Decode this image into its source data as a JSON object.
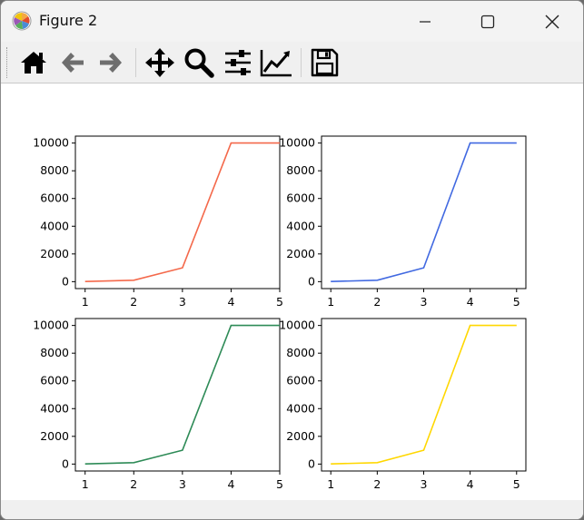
{
  "window": {
    "title": "Figure 2",
    "app_icon": "matplotlib-logo-icon",
    "controls": [
      "minimize-icon",
      "maximize-icon",
      "close-icon"
    ]
  },
  "toolbar": {
    "buttons": [
      {
        "name": "home-button",
        "icon": "home-icon"
      },
      {
        "name": "back-button",
        "icon": "arrow-left-icon"
      },
      {
        "name": "forward-button",
        "icon": "arrow-right-icon"
      },
      {
        "name": "pan-button",
        "icon": "move-arrows-icon"
      },
      {
        "name": "zoom-button",
        "icon": "magnifier-icon"
      },
      {
        "name": "subplots-button",
        "icon": "sliders-icon"
      },
      {
        "name": "edit-axes-button",
        "icon": "line-chart-icon"
      },
      {
        "name": "save-button",
        "icon": "floppy-disk-icon"
      }
    ]
  },
  "chart_data": [
    {
      "type": "line",
      "x": [
        1,
        2,
        3,
        4,
        5
      ],
      "series": [
        {
          "values": [
            10,
            100,
            1000,
            10000,
            10000
          ],
          "color": "#f4694b"
        }
      ],
      "xticks": [
        "1",
        "2",
        "3",
        "4",
        "5"
      ],
      "yticks": [
        "0",
        "2000",
        "4000",
        "6000",
        "8000",
        "10000"
      ],
      "xlim": [
        0.8,
        5.0
      ],
      "ylim": [
        -500,
        10500
      ],
      "grid": false
    },
    {
      "type": "line",
      "x": [
        1,
        2,
        3,
        4,
        5
      ],
      "series": [
        {
          "values": [
            10,
            100,
            1000,
            10000,
            10000
          ],
          "color": "#4169e1"
        }
      ],
      "xticks": [
        "1",
        "2",
        "3",
        "4",
        "5"
      ],
      "yticks": [
        "0",
        "2000",
        "4000",
        "6000",
        "8000",
        "10000"
      ],
      "xlim": [
        0.8,
        5.2
      ],
      "ylim": [
        -500,
        10500
      ],
      "grid": false
    },
    {
      "type": "line",
      "x": [
        1,
        2,
        3,
        4,
        5
      ],
      "series": [
        {
          "values": [
            10,
            100,
            1000,
            10000,
            10000
          ],
          "color": "#2e8b57"
        }
      ],
      "xticks": [
        "1",
        "2",
        "3",
        "4",
        "5"
      ],
      "yticks": [
        "0",
        "2000",
        "4000",
        "6000",
        "8000",
        "10000"
      ],
      "xlim": [
        0.8,
        5.0
      ],
      "ylim": [
        -500,
        10500
      ],
      "grid": false
    },
    {
      "type": "line",
      "x": [
        1,
        2,
        3,
        4,
        5
      ],
      "series": [
        {
          "values": [
            10,
            100,
            1000,
            10000,
            10000
          ],
          "color": "#ffd700"
        }
      ],
      "xticks": [
        "1",
        "2",
        "3",
        "4",
        "5"
      ],
      "yticks": [
        "0",
        "2000",
        "4000",
        "6000",
        "8000",
        "10000"
      ],
      "xlim": [
        0.8,
        5.2
      ],
      "ylim": [
        -500,
        10500
      ],
      "grid": false
    }
  ]
}
